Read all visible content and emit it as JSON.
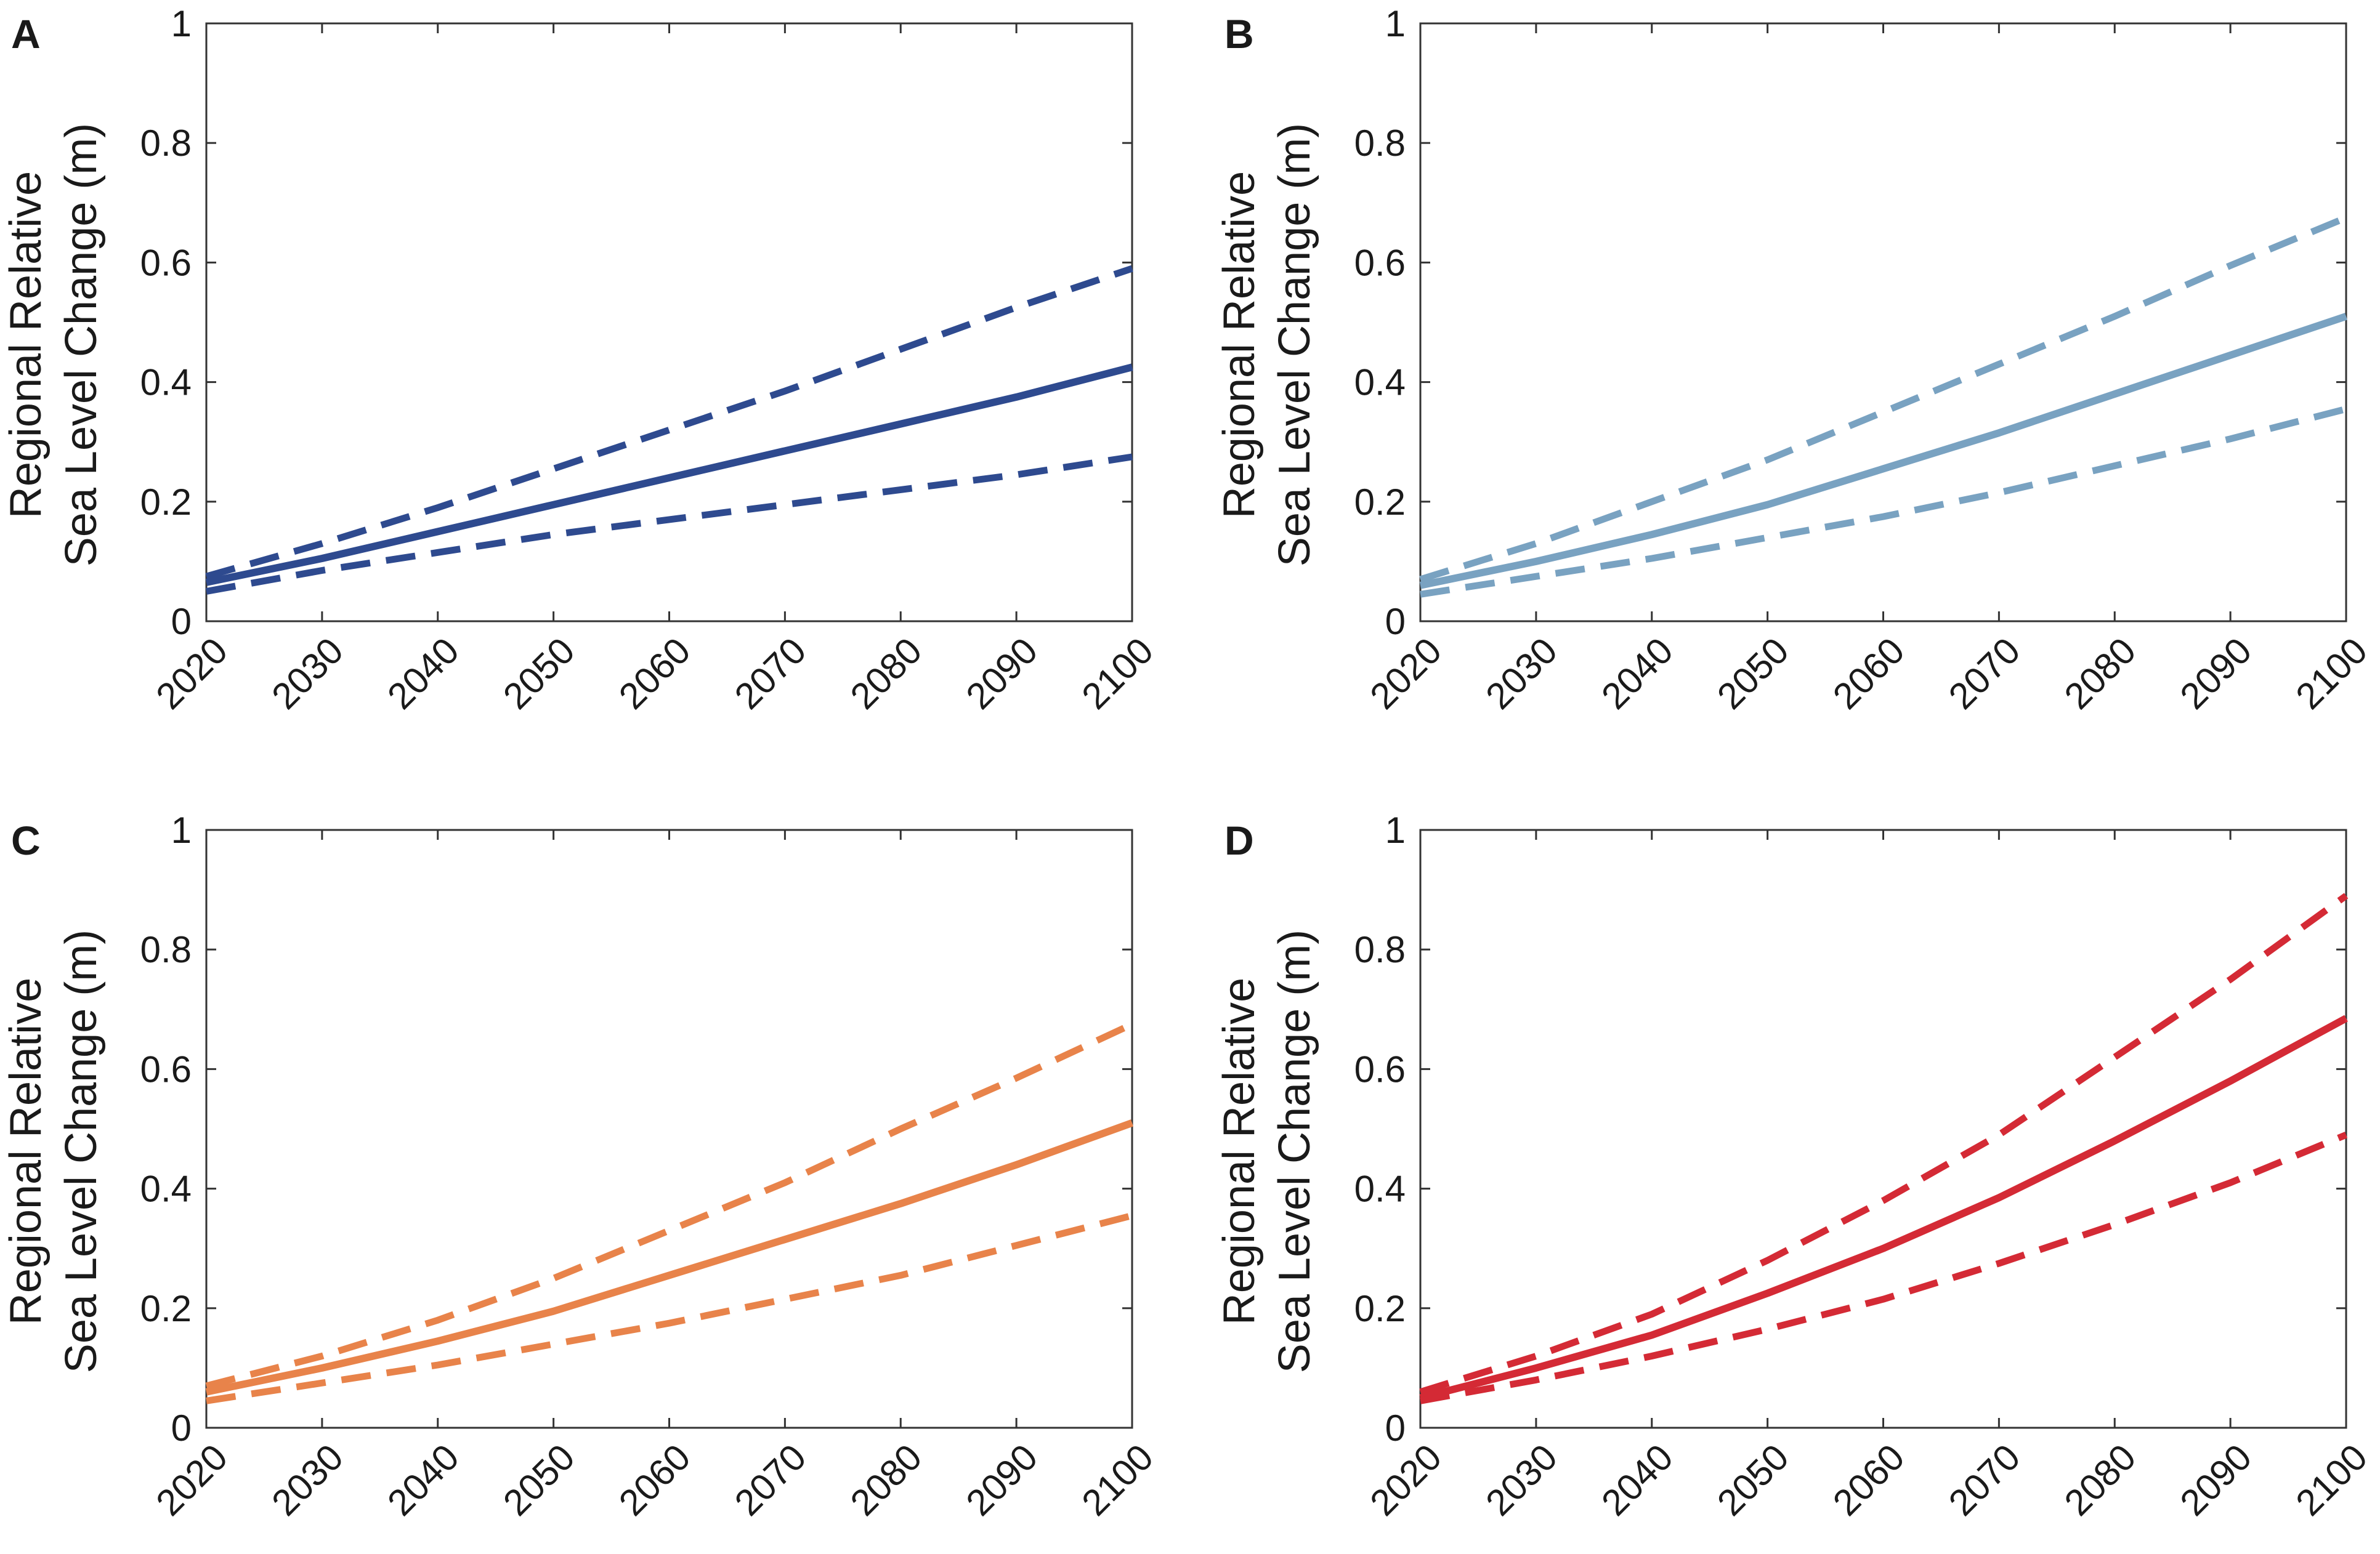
{
  "chart_data": [
    {
      "type": "line",
      "panel_label": "A",
      "ylabel_line1": "Regional Relative",
      "ylabel_line2": "Sea Level Change (m)",
      "xlabel": "",
      "xlim": [
        2020,
        2100
      ],
      "ylim": [
        0,
        1
      ],
      "xticks": [
        "2020",
        "2030",
        "2040",
        "2050",
        "2060",
        "2070",
        "2080",
        "2090",
        "2100"
      ],
      "yticks": [
        "0",
        "0.2",
        "0.4",
        "0.6",
        "0.8",
        "1"
      ],
      "color": "#2e4a8f",
      "x": [
        2020,
        2030,
        2040,
        2050,
        2060,
        2070,
        2080,
        2090,
        2100
      ],
      "series": [
        {
          "name": "upper",
          "style": "dashed",
          "values": [
            0.075,
            0.13,
            0.19,
            0.255,
            0.32,
            0.385,
            0.455,
            0.525,
            0.59
          ]
        },
        {
          "name": "median",
          "style": "solid",
          "values": [
            0.065,
            0.105,
            0.15,
            0.195,
            0.24,
            0.285,
            0.33,
            0.375,
            0.425
          ]
        },
        {
          "name": "lower",
          "style": "dashed",
          "values": [
            0.05,
            0.085,
            0.115,
            0.145,
            0.17,
            0.195,
            0.22,
            0.245,
            0.275
          ]
        }
      ]
    },
    {
      "type": "line",
      "panel_label": "B",
      "ylabel_line1": "Regional Relative",
      "ylabel_line2": "Sea Level Change (m)",
      "xlabel": "",
      "xlim": [
        2020,
        2100
      ],
      "ylim": [
        0,
        1
      ],
      "xticks": [
        "2020",
        "2030",
        "2040",
        "2050",
        "2060",
        "2070",
        "2080",
        "2090",
        "2100"
      ],
      "yticks": [
        "0",
        "0.2",
        "0.4",
        "0.6",
        "0.8",
        "1"
      ],
      "color": "#79a2c1",
      "x": [
        2020,
        2030,
        2040,
        2050,
        2060,
        2070,
        2080,
        2090,
        2100
      ],
      "series": [
        {
          "name": "upper",
          "style": "dashed",
          "values": [
            0.07,
            0.13,
            0.2,
            0.27,
            0.35,
            0.43,
            0.51,
            0.595,
            0.675
          ]
        },
        {
          "name": "median",
          "style": "solid",
          "values": [
            0.06,
            0.1,
            0.145,
            0.195,
            0.255,
            0.315,
            0.38,
            0.445,
            0.51
          ]
        },
        {
          "name": "lower",
          "style": "dashed",
          "values": [
            0.045,
            0.075,
            0.105,
            0.14,
            0.175,
            0.215,
            0.26,
            0.305,
            0.355
          ]
        }
      ]
    },
    {
      "type": "line",
      "panel_label": "C",
      "ylabel_line1": "Regional Relative",
      "ylabel_line2": "Sea Level Change (m)",
      "xlabel": "",
      "xlim": [
        2020,
        2100
      ],
      "ylim": [
        0,
        1
      ],
      "xticks": [
        "2020",
        "2030",
        "2040",
        "2050",
        "2060",
        "2070",
        "2080",
        "2090",
        "2100"
      ],
      "yticks": [
        "0",
        "0.2",
        "0.4",
        "0.6",
        "0.8",
        "1"
      ],
      "color": "#e8834a",
      "x": [
        2020,
        2030,
        2040,
        2050,
        2060,
        2070,
        2080,
        2090,
        2100
      ],
      "series": [
        {
          "name": "upper",
          "style": "dashed",
          "values": [
            0.07,
            0.12,
            0.18,
            0.25,
            0.33,
            0.41,
            0.5,
            0.585,
            0.675
          ]
        },
        {
          "name": "median",
          "style": "solid",
          "values": [
            0.06,
            0.1,
            0.145,
            0.195,
            0.255,
            0.315,
            0.375,
            0.44,
            0.51
          ]
        },
        {
          "name": "lower",
          "style": "dashed",
          "values": [
            0.045,
            0.075,
            0.105,
            0.14,
            0.175,
            0.215,
            0.255,
            0.305,
            0.355
          ]
        }
      ]
    },
    {
      "type": "line",
      "panel_label": "D",
      "ylabel_line1": "Regional Relative",
      "ylabel_line2": "Sea Level Change (m)",
      "xlabel": "",
      "xlim": [
        2020,
        2100
      ],
      "ylim": [
        0,
        1
      ],
      "xticks": [
        "2020",
        "2030",
        "2040",
        "2050",
        "2060",
        "2070",
        "2080",
        "2090",
        "2100"
      ],
      "yticks": [
        "0",
        "0.2",
        "0.4",
        "0.6",
        "0.8",
        "1"
      ],
      "color": "#d42a35",
      "x": [
        2020,
        2030,
        2040,
        2050,
        2060,
        2070,
        2080,
        2090,
        2100
      ],
      "series": [
        {
          "name": "upper",
          "style": "dashed",
          "values": [
            0.06,
            0.12,
            0.19,
            0.28,
            0.38,
            0.49,
            0.62,
            0.75,
            0.89
          ]
        },
        {
          "name": "median",
          "style": "solid",
          "values": [
            0.05,
            0.1,
            0.155,
            0.225,
            0.3,
            0.385,
            0.48,
            0.58,
            0.685
          ]
        },
        {
          "name": "lower",
          "style": "dashed",
          "values": [
            0.045,
            0.08,
            0.12,
            0.165,
            0.215,
            0.275,
            0.34,
            0.41,
            0.49
          ]
        }
      ]
    }
  ]
}
